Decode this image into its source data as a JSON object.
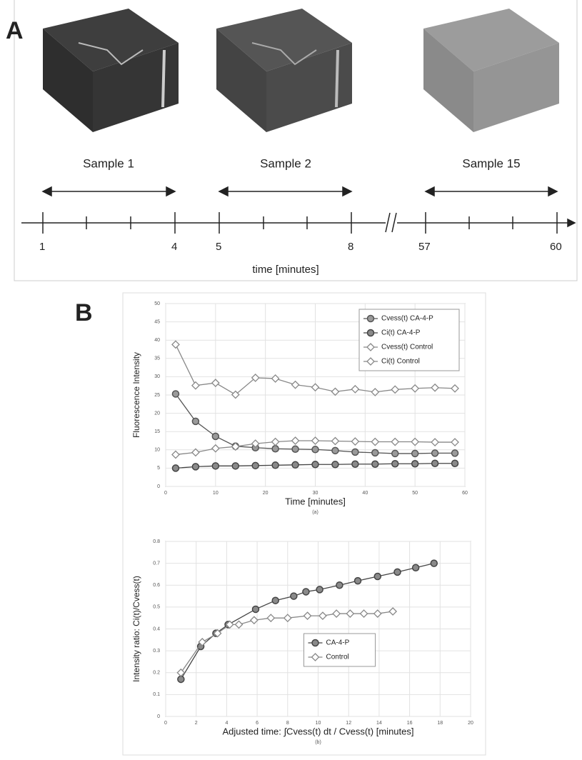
{
  "panel_a": {
    "label": "A",
    "samples": [
      "Sample 1",
      "Sample 2",
      "Sample 15"
    ],
    "tick_labels": [
      "1",
      "4",
      "5",
      "8",
      "57",
      "60"
    ],
    "axis_label": "time  [minutes]"
  },
  "panel_b": {
    "label": "B"
  },
  "chart_data": [
    {
      "type": "line",
      "caption": "(a)",
      "xlabel": "Time [minutes]",
      "ylabel": "Fluorescence Intensity",
      "x": [
        2,
        6,
        10,
        14,
        18,
        22,
        26,
        30,
        34,
        38,
        42,
        46,
        50,
        54,
        58
      ],
      "xlim": [
        0,
        60
      ],
      "xticks": [
        0,
        10,
        20,
        30,
        40,
        50,
        60
      ],
      "ylim": [
        0,
        50
      ],
      "yticks": [
        0,
        5,
        10,
        15,
        20,
        25,
        30,
        35,
        40,
        45,
        50
      ],
      "grid": true,
      "legend": "upper right",
      "series": [
        {
          "name": "Cvess(t) CA-4-P",
          "marker": "circle",
          "color": "#555555",
          "fill": "#9a9a9a",
          "values": [
            25.3,
            17.8,
            13.7,
            11.0,
            10.6,
            10.3,
            10.2,
            10.1,
            9.8,
            9.4,
            9.2,
            9.0,
            9.0,
            9.1,
            9.1
          ]
        },
        {
          "name": "Ci(t)      CA-4-P",
          "marker": "circle",
          "color": "#444444",
          "fill": "#8a8a8a",
          "values": [
            5.0,
            5.4,
            5.6,
            5.6,
            5.7,
            5.8,
            5.9,
            6.0,
            6.0,
            6.1,
            6.1,
            6.2,
            6.2,
            6.3,
            6.3
          ]
        },
        {
          "name": "Cvess(t) Control",
          "marker": "diamond",
          "color": "#888888",
          "fill": "#ffffff",
          "values": [
            8.7,
            9.3,
            10.4,
            10.9,
            11.7,
            12.2,
            12.5,
            12.5,
            12.4,
            12.3,
            12.2,
            12.2,
            12.2,
            12.1,
            12.1
          ]
        },
        {
          "name": "Ci(t)      Control",
          "marker": "diamond",
          "color": "#888888",
          "fill": "#ffffff",
          "values": [
            38.8,
            27.6,
            28.3,
            25.1,
            29.7,
            29.5,
            27.8,
            27.1,
            25.9,
            26.6,
            25.8,
            26.5,
            26.8,
            27.0,
            26.8
          ]
        }
      ]
    },
    {
      "type": "line",
      "caption": "(b)",
      "xlabel": "Adjusted time: ∫Cvess(t) dt / Cvess(t) [minutes]",
      "ylabel": "Intensity ratio: Ci(t)/Cvess(t)",
      "xlim": [
        0,
        20
      ],
      "xticks": [
        0,
        2,
        4,
        6,
        8,
        10,
        12,
        14,
        16,
        18,
        20
      ],
      "ylim": [
        0,
        0.8
      ],
      "yticks": [
        0,
        0.1,
        0.2,
        0.3,
        0.4,
        0.5,
        0.6,
        0.7,
        0.8
      ],
      "grid": true,
      "legend": "lower center",
      "series": [
        {
          "name": "CA-4-P",
          "marker": "circle",
          "color": "#444444",
          "fill": "#8a8a8a",
          "x": [
            1.0,
            2.3,
            3.3,
            4.1,
            5.9,
            7.2,
            8.4,
            9.2,
            10.1,
            11.4,
            12.6,
            13.9,
            15.2,
            16.4,
            17.6
          ],
          "values": [
            0.17,
            0.32,
            0.38,
            0.42,
            0.49,
            0.53,
            0.55,
            0.57,
            0.58,
            0.6,
            0.62,
            0.64,
            0.66,
            0.68,
            0.7
          ]
        },
        {
          "name": "Control",
          "marker": "diamond",
          "color": "#888888",
          "fill": "#ffffff",
          "x": [
            1.0,
            2.4,
            3.4,
            4.2,
            4.8,
            5.8,
            6.9,
            8.0,
            9.3,
            10.3,
            11.2,
            12.1,
            13.0,
            13.9,
            14.9
          ],
          "values": [
            0.2,
            0.34,
            0.38,
            0.42,
            0.42,
            0.44,
            0.45,
            0.45,
            0.46,
            0.46,
            0.47,
            0.47,
            0.47,
            0.47,
            0.48
          ]
        }
      ]
    }
  ]
}
